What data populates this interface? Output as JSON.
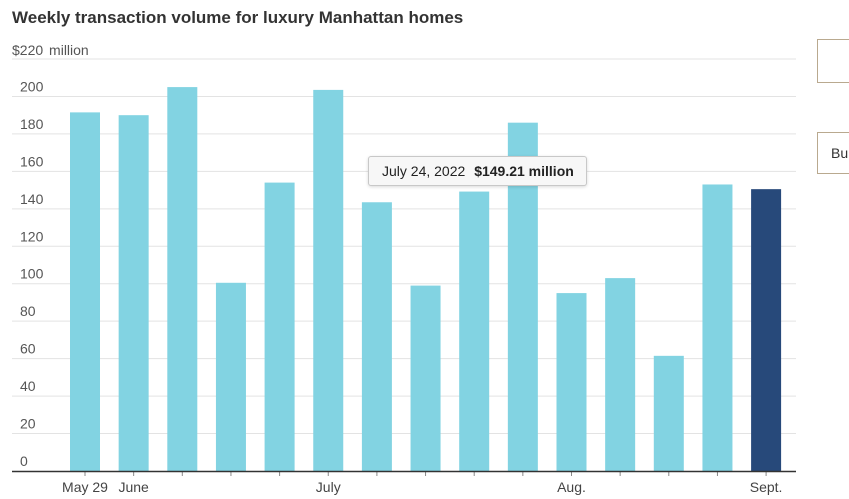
{
  "chart_data": {
    "type": "bar",
    "title": "Weekly transaction volume for luxury Manhattan homes",
    "ylabel_unit_first": "$220",
    "ylabel_unit_suffix": "million",
    "ylim": [
      0,
      220
    ],
    "yticks": [
      0,
      20,
      40,
      60,
      80,
      100,
      120,
      140,
      160,
      180,
      200,
      220
    ],
    "ytick_labels": [
      "0",
      "20",
      "40",
      "60",
      "80",
      "100",
      "120",
      "140",
      "160",
      "180",
      "200"
    ],
    "bars": [
      {
        "label": "",
        "value": 191.5
      },
      {
        "label": "",
        "value": 190.0
      },
      {
        "label": "",
        "value": 205.0
      },
      {
        "label": "",
        "value": 100.5
      },
      {
        "label": "",
        "value": 154.0
      },
      {
        "label": "",
        "value": 203.5
      },
      {
        "label": "",
        "value": 143.5
      },
      {
        "label": "",
        "value": 99.0
      },
      {
        "label": "July 24, 2022",
        "value": 149.21
      },
      {
        "label": "",
        "value": 186.0
      },
      {
        "label": "",
        "value": 95.0
      },
      {
        "label": "",
        "value": 103.0
      },
      {
        "label": "",
        "value": 61.5
      },
      {
        "label": "",
        "value": 153.0
      },
      {
        "label": "",
        "value": 150.5
      }
    ],
    "x_labels": [
      {
        "text": "May 29",
        "bar_index": 0
      },
      {
        "text": "June",
        "bar_index": 1
      },
      {
        "text": "July",
        "bar_index": 5
      },
      {
        "text": "Aug.",
        "bar_index": 10
      },
      {
        "text": "Sept.",
        "bar_index": 14
      }
    ],
    "highlight_index": 14,
    "colors": {
      "bar": "#82d3e2",
      "highlight": "#27497a",
      "grid": "#e3e3e3",
      "axis": "#333333"
    }
  },
  "tooltip": {
    "date": "July 24, 2022",
    "value": "$149.21 million"
  },
  "side_buttons": {
    "bottom_label": "Bu"
  }
}
